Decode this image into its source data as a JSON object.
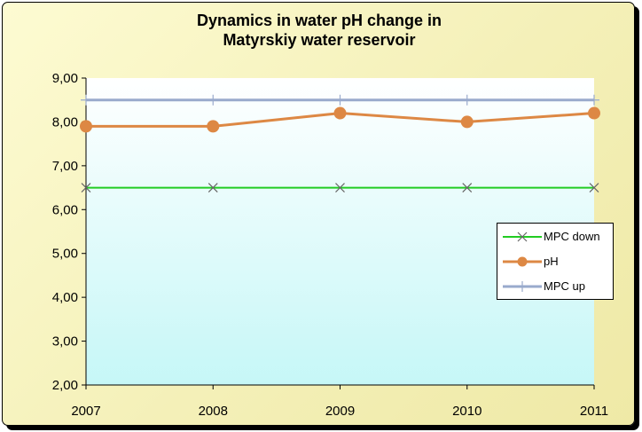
{
  "chart_data": {
    "type": "line",
    "title": [
      "Dynamics  in water pH change in",
      "Matyrskiy water reservoir"
    ],
    "categories": [
      "2007",
      "2008",
      "2009",
      "2010",
      "2011"
    ],
    "y_ticks": [
      "2,00",
      "3,00",
      "4,00",
      "5,00",
      "6,00",
      "7,00",
      "8,00",
      "9,00"
    ],
    "ylim": [
      2,
      9
    ],
    "grid": false,
    "legend_position": "right",
    "series": [
      {
        "name": "MPC down",
        "values": [
          6.5,
          6.5,
          6.5,
          6.5,
          6.5
        ],
        "color": "#22cc22",
        "marker": "x"
      },
      {
        "name": "pH",
        "values": [
          7.9,
          7.9,
          8.2,
          8.0,
          8.2
        ],
        "color": "#dd8844",
        "marker": "circle"
      },
      {
        "name": "MPC up",
        "values": [
          8.5,
          8.5,
          8.5,
          8.5,
          8.5
        ],
        "color": "#99aacc",
        "marker": "plus"
      }
    ]
  }
}
